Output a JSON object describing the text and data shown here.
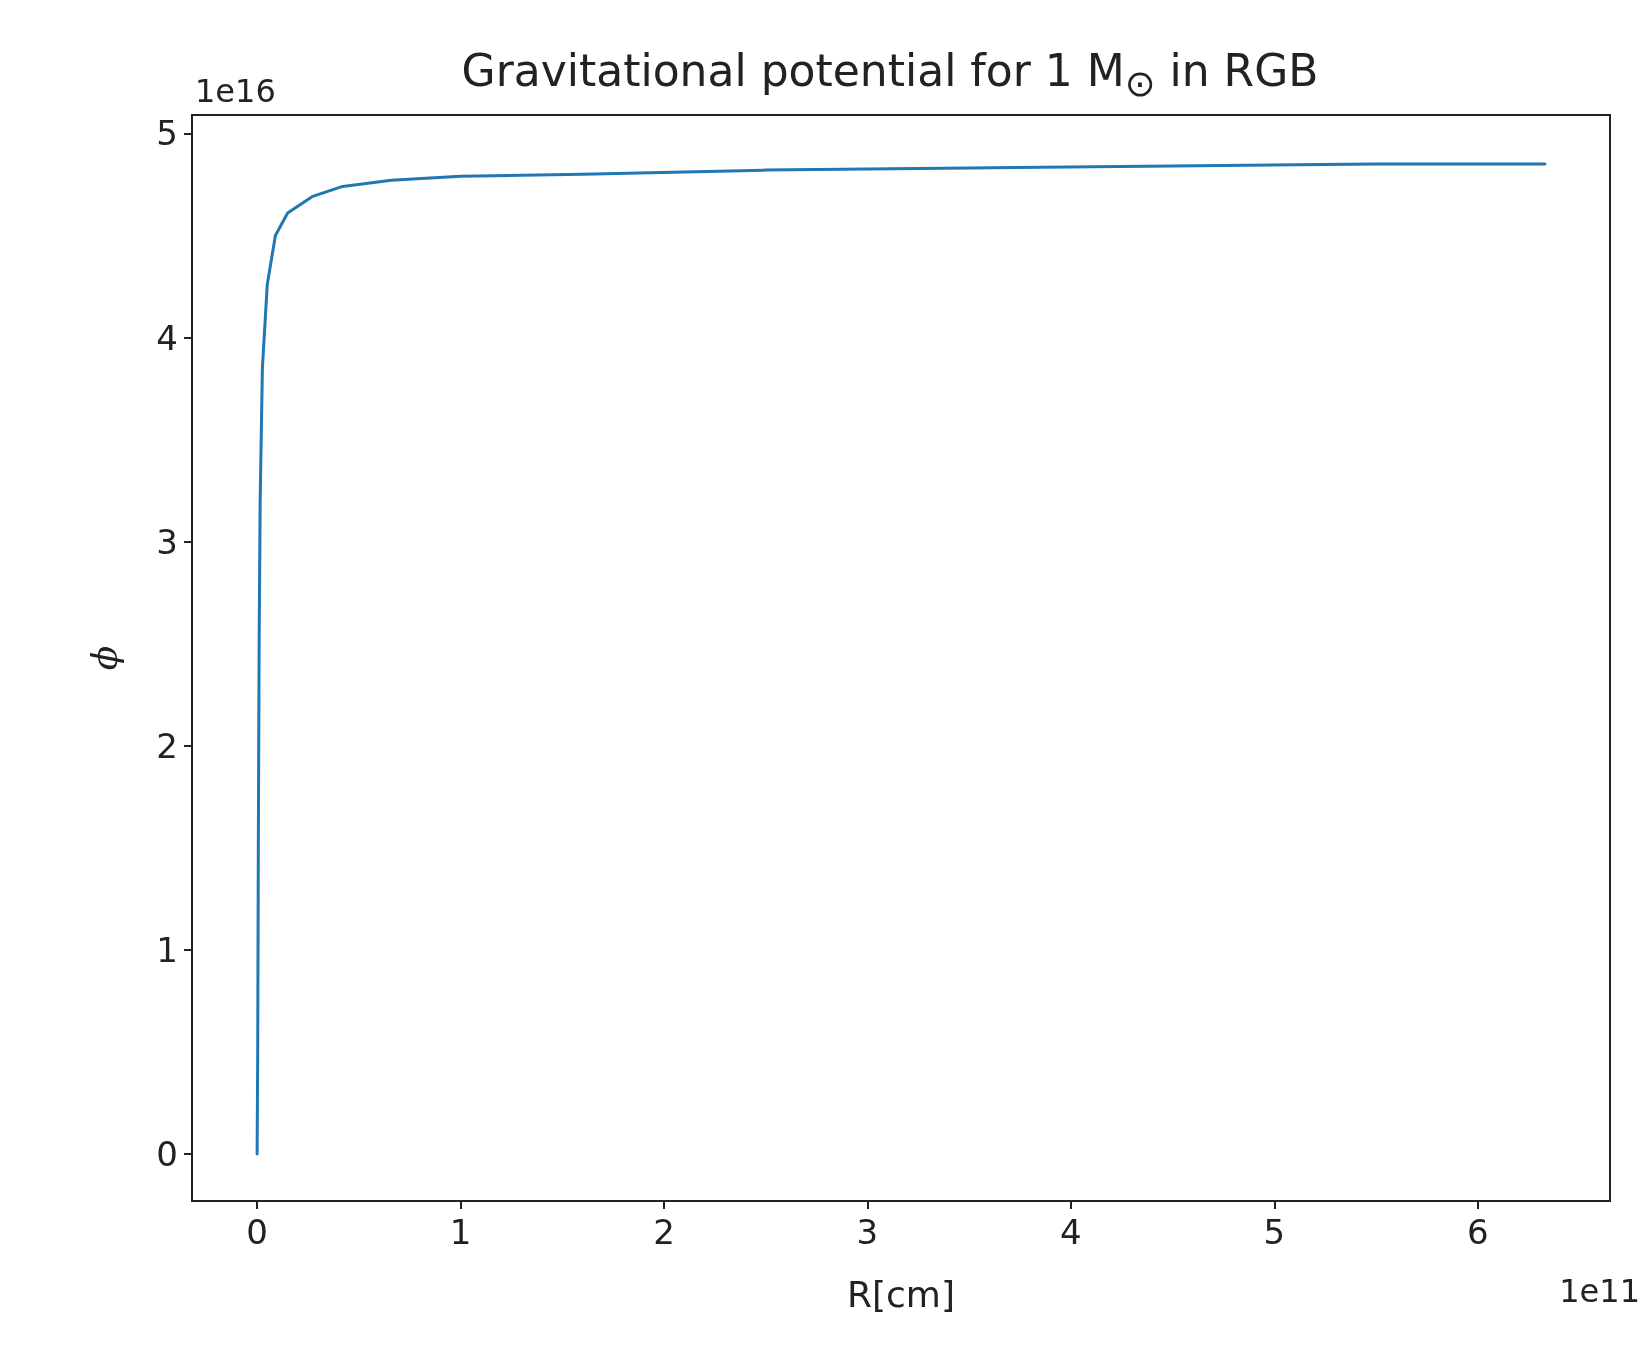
{
  "chart_data": {
    "type": "line",
    "title": "Gravitational potential for 1 M$_{⊙}$ in RGB",
    "xlabel": "R[cm]",
    "ylabel": "ϕ",
    "annotations": [
      "1e16",
      "1e11"
    ],
    "x": [
      0,
      0.003,
      0.006,
      0.01,
      0.015,
      0.026,
      0.05,
      0.09,
      0.15,
      0.27,
      0.42,
      0.66,
      1.0,
      1.6,
      2.5,
      3.5,
      4.5,
      5.5,
      6.33
    ],
    "series": [
      {
        "color": "#1f77b4",
        "values": [
          0,
          0.5,
          1.5,
          2.5,
          3.2,
          3.85,
          4.26,
          4.5,
          4.61,
          4.69,
          4.74,
          4.77,
          4.79,
          4.8,
          4.82,
          4.83,
          4.84,
          4.85,
          4.85
        ]
      }
    ],
    "xlim": [
      -0.32,
      6.65
    ],
    "ylim": [
      -0.23,
      5.09
    ],
    "xticks": [
      0,
      1,
      2,
      3,
      4,
      5,
      6
    ],
    "yticks": [
      0,
      1,
      2,
      3,
      4,
      5
    ],
    "grid": false,
    "marker": "none",
    "line_style": "solid"
  }
}
